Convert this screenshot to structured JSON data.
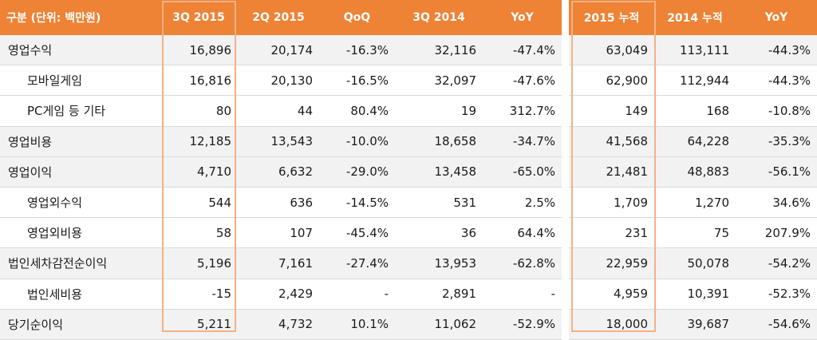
{
  "table": {
    "headers": [
      "구분 (단위: 백만원)",
      "3Q 2015",
      "2Q 2015",
      "QoQ",
      "3Q 2014",
      "YoY",
      "2015 누적",
      "2014 누적",
      "YoY"
    ],
    "rows": [
      {
        "label": "영업수익",
        "sub": false,
        "shaded": true,
        "cells": [
          "16,896",
          "20,174",
          "-16.3%",
          "32,116",
          "-47.4%",
          "63,049",
          "113,111",
          "-44.3%"
        ]
      },
      {
        "label": "모바일게임",
        "sub": true,
        "shaded": false,
        "cells": [
          "16,816",
          "20,130",
          "-16.5%",
          "32,097",
          "-47.6%",
          "62,900",
          "112,944",
          "-44.3%"
        ]
      },
      {
        "label": "PC게임 등 기타",
        "sub": true,
        "shaded": false,
        "cells": [
          "80",
          "44",
          "80.4%",
          "19",
          "312.7%",
          "149",
          "168",
          "-10.8%"
        ]
      },
      {
        "label": "영업비용",
        "sub": false,
        "shaded": true,
        "cells": [
          "12,185",
          "13,543",
          "-10.0%",
          "18,658",
          "-34.7%",
          "41,568",
          "64,228",
          "-35.3%"
        ]
      },
      {
        "label": "영업이익",
        "sub": false,
        "shaded": true,
        "cells": [
          "4,710",
          "6,632",
          "-29.0%",
          "13,458",
          "-65.0%",
          "21,481",
          "48,883",
          "-56.1%"
        ]
      },
      {
        "label": "영업외수익",
        "sub": true,
        "shaded": false,
        "cells": [
          "544",
          "636",
          "-14.5%",
          "531",
          "2.5%",
          "1,709",
          "1,270",
          "34.6%"
        ]
      },
      {
        "label": "영업외비용",
        "sub": true,
        "shaded": false,
        "cells": [
          "58",
          "107",
          "-45.4%",
          "36",
          "64.4%",
          "231",
          "75",
          "207.9%"
        ]
      },
      {
        "label": "법인세차감전순이익",
        "sub": false,
        "shaded": true,
        "cells": [
          "5,196",
          "7,161",
          "-27.4%",
          "13,953",
          "-62.8%",
          "22,959",
          "50,078",
          "-54.2%"
        ]
      },
      {
        "label": "법인세비용",
        "sub": true,
        "shaded": false,
        "cells": [
          "-15",
          "2,429",
          "-",
          "2,891",
          "-",
          "4,959",
          "10,391",
          "-52.3%"
        ]
      },
      {
        "label": "당기순이익",
        "sub": false,
        "shaded": true,
        "cells": [
          "5,211",
          "4,732",
          "10.1%",
          "11,062",
          "-52.9%",
          "18,000",
          "39,687",
          "-54.6%"
        ]
      }
    ]
  },
  "colors": {
    "header": "#ee8235",
    "highlight_border": "#f4b183",
    "row_shade": "#f2f2f2"
  }
}
